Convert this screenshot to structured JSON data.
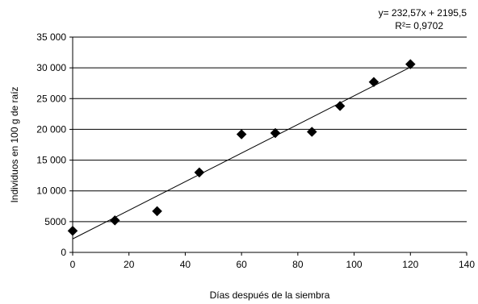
{
  "chart_data": {
    "type": "scatter",
    "title": "",
    "xlabel": "Días después de la siembra",
    "ylabel": "Individuos en 100 g de raíz",
    "xlim": [
      0,
      140
    ],
    "ylim": [
      0,
      35000
    ],
    "x_ticks": [
      0,
      20,
      40,
      60,
      80,
      100,
      120,
      140
    ],
    "x_tick_labels": [
      "0",
      "20",
      "40",
      "60",
      "80",
      "100",
      "120",
      "140"
    ],
    "y_ticks": [
      0,
      5000,
      10000,
      15000,
      20000,
      25000,
      30000,
      35000
    ],
    "y_tick_labels": [
      "0",
      "5000",
      "10 000",
      "15 000",
      "20 000",
      "25 000",
      "30 000",
      "35 000"
    ],
    "grid": "horizontal",
    "marker": "diamond",
    "marker_color": "#000000",
    "series": [
      {
        "x": [
          0,
          15,
          30,
          45,
          60,
          72,
          85,
          95,
          107,
          120
        ],
        "y": [
          3500,
          5200,
          6700,
          13000,
          19200,
          19400,
          19600,
          23800,
          27700,
          30600
        ]
      }
    ],
    "trendline": {
      "slope": 232.57,
      "intercept": 2195.5,
      "x_range": [
        0,
        120
      ],
      "equation_label": "y= 232,57x + 2195,5",
      "r2_label": "R²= 0,9702"
    }
  }
}
